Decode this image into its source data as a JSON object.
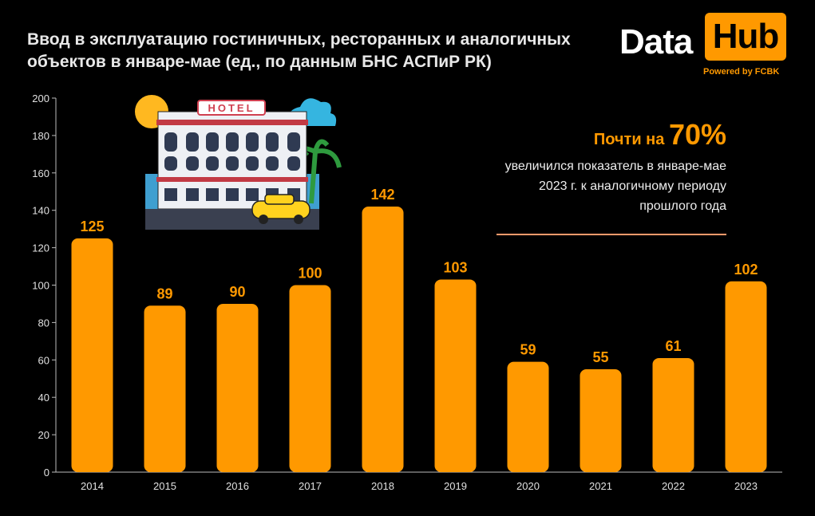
{
  "title": "Ввод в эксплуатацию гостиничных, ресторанных и аналогичных объектов в январе-мае (ед., по данным БНС АСПиР РК)",
  "logo": {
    "part1": "Data",
    "part2": "Hub",
    "powered": "Powered by FCBK"
  },
  "highlight": {
    "prefix": "Почти на ",
    "big": "70%",
    "text": "увеличился показатель в январе-мае   2023 г. к аналогичному периоду прошлого года"
  },
  "illustration": {
    "sign": "HOTEL"
  },
  "colors": {
    "bar": "#ff9900",
    "background": "#000000",
    "accent": "#ff9900"
  },
  "chart_data": {
    "type": "bar",
    "title": "Ввод в эксплуатацию гостиничных, ресторанных и аналогичных объектов в январе-мае (ед., по данным БНС АСПиР РК)",
    "categories": [
      "2014",
      "2015",
      "2016",
      "2017",
      "2018",
      "2019",
      "2020",
      "2021",
      "2022",
      "2023"
    ],
    "values": [
      125,
      89,
      90,
      100,
      142,
      103,
      59,
      55,
      61,
      102
    ],
    "ylim": [
      0,
      200
    ],
    "yticks": [
      0,
      20,
      40,
      60,
      80,
      100,
      120,
      140,
      160,
      180,
      200
    ],
    "xlabel": "",
    "ylabel": "",
    "grid": false,
    "data_labels": true
  }
}
